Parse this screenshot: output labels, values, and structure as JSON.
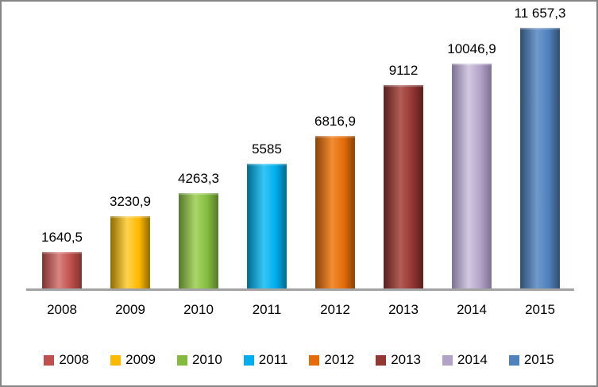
{
  "chart_data": {
    "type": "bar",
    "title": "",
    "xlabel": "",
    "ylabel": "",
    "categories": [
      "2008",
      "2009",
      "2010",
      "2011",
      "2012",
      "2013",
      "2014",
      "2015"
    ],
    "values": [
      1640.5,
      3230.9,
      4263.3,
      5585,
      6816.9,
      9112,
      10046.9,
      11657.3
    ],
    "value_labels": [
      "1640,5",
      "3230,9",
      "4263,3",
      "5585",
      "6816,9",
      "9112",
      "10046,9",
      "11 657,3"
    ],
    "colors": [
      "#C0504D",
      "#FFB900",
      "#84BB3F",
      "#00AEEF",
      "#E36C09",
      "#943634",
      "#B3A2C7",
      "#4F81BD"
    ],
    "colors_dark": [
      "#7F3230",
      "#8F6B00",
      "#55782A",
      "#00698F",
      "#8A4206",
      "#581E1C",
      "#7D7092",
      "#2E4D71"
    ],
    "colors_light": [
      "#D98480",
      "#FFD34D",
      "#AAD667",
      "#35C6F4",
      "#F28C33",
      "#B25D55",
      "#D2C9E1",
      "#7099CB"
    ],
    "ylim": [
      0,
      11657.3
    ],
    "grid": false,
    "legend_position": "bottom",
    "legend": [
      "2008",
      "2009",
      "2010",
      "2011",
      "2012",
      "2013",
      "2014",
      "2015"
    ]
  },
  "frame": {
    "background": "#FFFFFF",
    "border_color": "#858585",
    "axis_line_color": "#A3A3A3",
    "text_color": "#000000"
  }
}
